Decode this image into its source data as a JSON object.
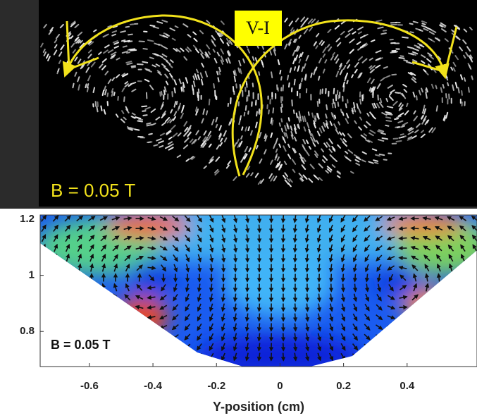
{
  "chart_data": [
    {
      "type": "image",
      "label": "V-I",
      "annotation": "B = 0.05 T"
    },
    {
      "type": "vector-field",
      "annotation": "B = 0.05 T",
      "xlabel": "Y-position (cm)",
      "xlim": [
        -0.755,
        0.62
      ],
      "ylim": [
        0.675,
        1.215
      ],
      "xticks": [
        -0.6,
        -0.4,
        -0.2,
        0,
        0.2,
        0.4
      ],
      "yticks": [
        0.8,
        1,
        1.2
      ]
    }
  ]
}
